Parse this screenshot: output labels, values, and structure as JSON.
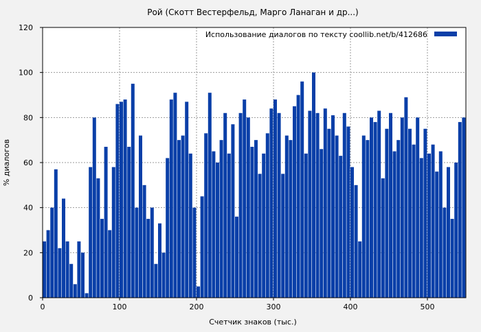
{
  "chart_data": {
    "type": "bar",
    "title": "Рой (Скотт Вестерфельд, Марго Ланаган и др...)",
    "xlabel": "Счетчик знаков (тыс.)",
    "ylabel": "% диалогов",
    "xlim": [
      0,
      550
    ],
    "ylim": [
      0,
      120
    ],
    "x_ticks": [
      0,
      100,
      200,
      300,
      400,
      500
    ],
    "y_ticks": [
      0,
      20,
      40,
      60,
      80,
      100,
      120
    ],
    "grid": true,
    "legend": {
      "position": "top-right",
      "label": "Использование диалогов по тексту  coollib.net/b/412686"
    },
    "series_color": "#0a3fa8",
    "bin_width": 5,
    "series": [
      {
        "x": [
          0,
          5,
          10,
          15,
          20,
          25,
          30,
          35,
          40,
          45,
          50,
          55,
          60,
          65,
          70,
          75,
          80,
          85,
          90,
          95,
          100,
          105,
          110,
          115,
          120,
          125,
          130,
          135,
          140,
          145,
          150,
          155,
          160,
          165,
          170,
          175,
          180,
          185,
          190,
          195,
          200,
          205,
          210,
          215,
          220,
          225,
          230,
          235,
          240,
          245,
          250,
          255,
          260,
          265,
          270,
          275,
          280,
          285,
          290,
          295,
          300,
          305,
          310,
          315,
          320,
          325,
          330,
          335,
          340,
          345,
          350,
          355,
          360,
          365,
          370,
          375,
          380,
          385,
          390,
          395,
          400,
          405,
          410,
          415,
          420,
          425,
          430,
          435,
          440,
          445,
          450,
          455,
          460,
          465,
          470,
          475,
          480,
          485,
          490,
          495,
          500,
          505,
          510,
          515,
          520,
          525,
          530,
          535,
          540,
          545
        ],
        "values": [
          25,
          30,
          40,
          57,
          22,
          44,
          25,
          15,
          6,
          25,
          20,
          2,
          58,
          80,
          53,
          35,
          67,
          30,
          58,
          86,
          87,
          88,
          67,
          95,
          40,
          72,
          50,
          35,
          40,
          15,
          33,
          20,
          62,
          88,
          91,
          70,
          72,
          87,
          64,
          40,
          5,
          45,
          73,
          91,
          65,
          60,
          70,
          82,
          64,
          77,
          36,
          82,
          88,
          80,
          67,
          70,
          55,
          64,
          73,
          84,
          88,
          82,
          55,
          72,
          70,
          85,
          90,
          96,
          64,
          83,
          100,
          82,
          66,
          84,
          75,
          81,
          72,
          63,
          82,
          76,
          58,
          50,
          25,
          72,
          70,
          80,
          78,
          83,
          53,
          75,
          82,
          65,
          70,
          80,
          89,
          75,
          68,
          80,
          62,
          75,
          64,
          68,
          56,
          65,
          40,
          58,
          35,
          60,
          78,
          80
        ]
      }
    ]
  }
}
